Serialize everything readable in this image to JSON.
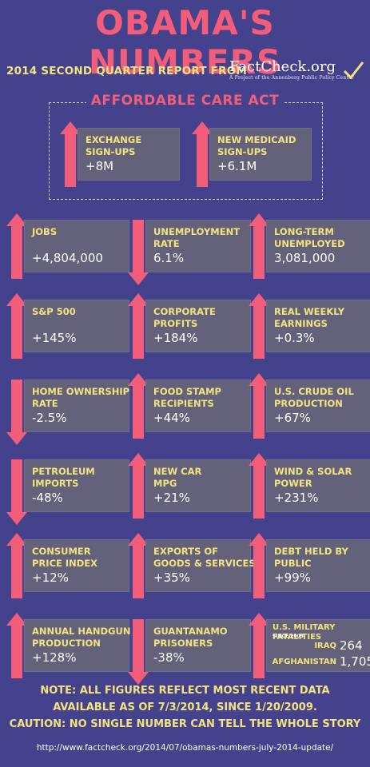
{
  "header": {
    "title": "OBAMA'S NUMBERS",
    "subtitle": "2014 SECOND QUARTER REPORT FROM",
    "logo_name": "FactCheck.org",
    "logo_tagline": "A Project of the Annenberg Public Policy Center"
  },
  "aca": {
    "title": "AFFORDABLE CARE ACT",
    "items": [
      {
        "label": "EXCHANGE\nSIGN-UPS",
        "value": "+8M",
        "direction": "up"
      },
      {
        "label": "NEW MEDICAID\nSIGN-UPS",
        "value": "+6.1M",
        "direction": "up"
      }
    ]
  },
  "stats": [
    {
      "label": "JOBS",
      "value": "+4,804,000",
      "direction": "up"
    },
    {
      "label": "UNEMPLOYMENT\nRATE",
      "value": "6.1%",
      "direction": "down"
    },
    {
      "label": "LONG-TERM\nUNEMPLOYED",
      "value": "3,081,000",
      "direction": "up"
    },
    {
      "label": "S&P 500",
      "value": "+145%",
      "direction": "up"
    },
    {
      "label": "CORPORATE\nPROFITS",
      "value": "+184%",
      "direction": "up"
    },
    {
      "label": "REAL WEEKLY\nEARNINGS",
      "value": "+0.3%",
      "direction": "up"
    },
    {
      "label": "HOME OWNERSHIP\nRATE",
      "value": "-2.5%",
      "direction": "down"
    },
    {
      "label": "FOOD STAMP\nRECIPIENTS",
      "value": "+44%",
      "direction": "up"
    },
    {
      "label": "U.S. CRUDE OIL\nPRODUCTION",
      "value": "+67%",
      "direction": "up"
    },
    {
      "label": "PETROLEUM\nIMPORTS",
      "value": "-48%",
      "direction": "down"
    },
    {
      "label": "NEW CAR\nMPG",
      "value": "+21%",
      "direction": "up"
    },
    {
      "label": "WIND & SOLAR\nPOWER",
      "value": "+231%",
      "direction": "up"
    },
    {
      "label": "CONSUMER\nPRICE INDEX",
      "value": "+12%",
      "direction": "up"
    },
    {
      "label": "EXPORTS OF\nGOODS & SERVICES",
      "value": "+35%",
      "direction": "up"
    },
    {
      "label": "DEBT HELD BY\nPUBLIC",
      "value": "+99%",
      "direction": "up"
    },
    {
      "label": "ANNUAL HANDGUN\nPRODUCTION",
      "value": "+128%",
      "direction": "up"
    },
    {
      "label": "GUANTANAMO\nPRISONERS",
      "value": "-38%",
      "direction": "down"
    }
  ],
  "fatalities": {
    "label": "U.S. MILITARY FATALITIES",
    "since": "SINCE 2009",
    "direction": "up",
    "rows": [
      {
        "name": "IRAQ",
        "value": "264"
      },
      {
        "name": "AFGHANISTAN",
        "value": "1,705"
      }
    ]
  },
  "footer": {
    "note_1": "NOTE:  ALL FIGURES REFLECT MOST RECENT DATA",
    "note_2": "AVAILABLE AS OF 7/3/2014, SINCE 1/20/2009.",
    "note_3": "CAUTION: NO SINGLE NUMBER CAN TELL THE WHOLE STORY",
    "url": "http://www.factcheck.org/2014/07/obamas-numbers-july-2014-update/"
  },
  "colors": {
    "background": "#45428d",
    "accent_pink": "#f25d7a",
    "label_yellow": "#f3e37e",
    "box_gray": "#63627a"
  }
}
